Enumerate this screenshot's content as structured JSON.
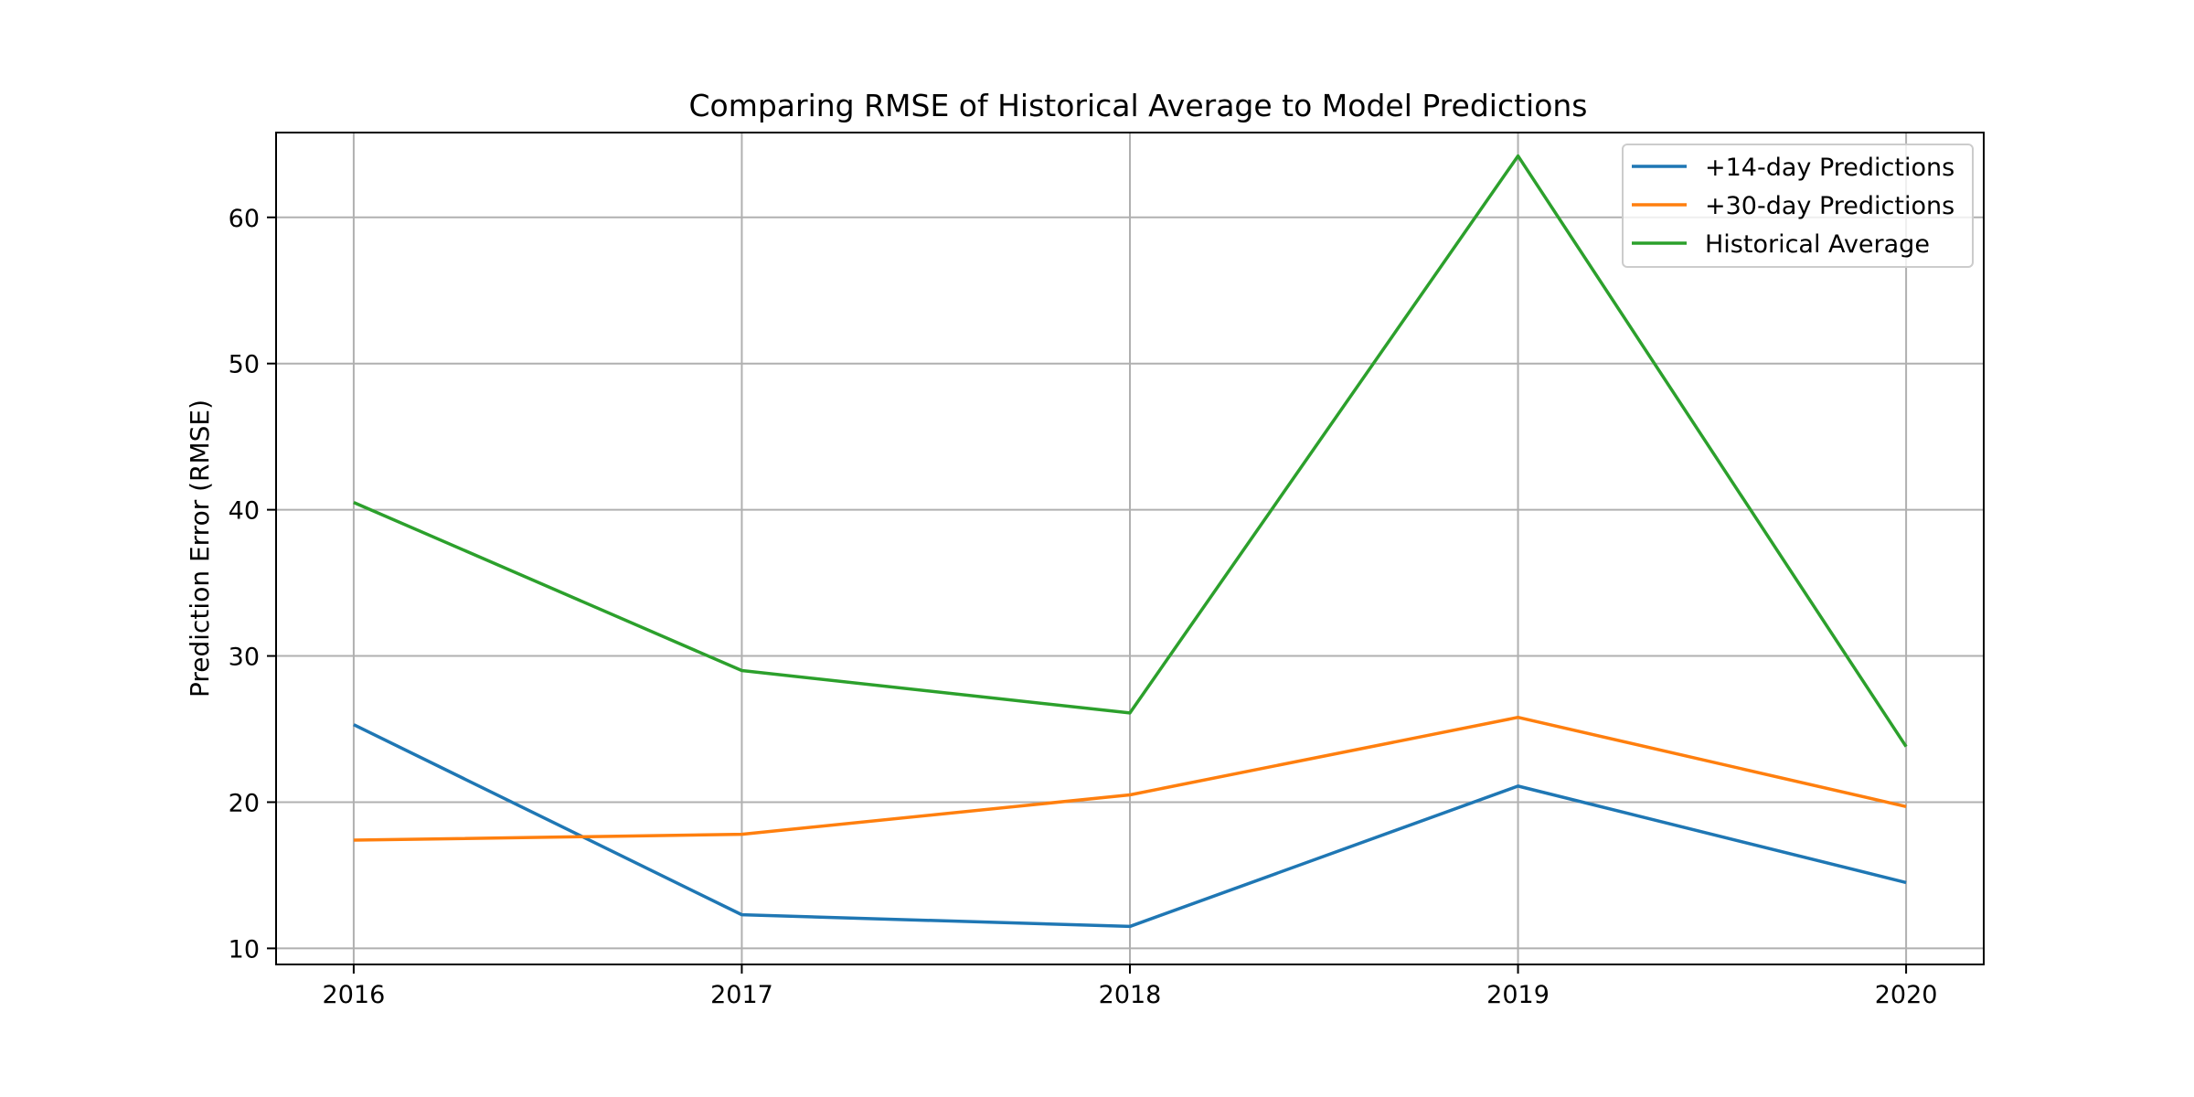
{
  "chart_data": {
    "type": "line",
    "title": "Comparing RMSE of Historical Average to Model Predictions",
    "xlabel": "",
    "ylabel": "Prediction Error (RMSE)",
    "x": [
      "2016",
      "2017",
      "2018",
      "2019",
      "2020"
    ],
    "xlim": [
      2015.8,
      2020.2
    ],
    "ylim": [
      8.9,
      65.8
    ],
    "yticks": [
      10,
      20,
      30,
      40,
      50,
      60
    ],
    "grid": true,
    "legend": "top-right",
    "series": [
      {
        "name": "+14-day Predictions",
        "color": "#1f77b4",
        "values": [
          25.3,
          12.3,
          11.5,
          21.1,
          14.5
        ]
      },
      {
        "name": "+30-day Predictions",
        "color": "#ff7f0e",
        "values": [
          17.4,
          17.8,
          20.5,
          25.8,
          19.7
        ]
      },
      {
        "name": "Historical Average",
        "color": "#2ca02c",
        "values": [
          40.5,
          29.0,
          26.1,
          64.2,
          23.8
        ]
      }
    ]
  }
}
